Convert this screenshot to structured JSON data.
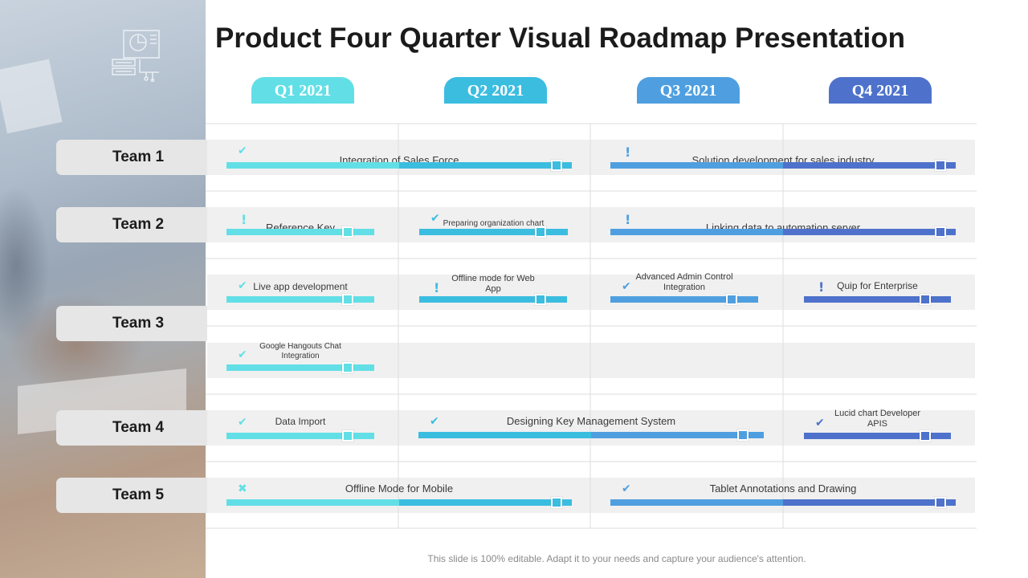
{
  "title": "Product Four Quarter Visual Roadmap Presentation",
  "quarters": [
    {
      "label": "Q1 2021",
      "color": "#62dfe6"
    },
    {
      "label": "Q2 2021",
      "color": "#3bbde0"
    },
    {
      "label": "Q3 2021",
      "color": "#4f9fe0"
    },
    {
      "label": "Q4 2021",
      "color": "#4e72cb"
    }
  ],
  "teams": [
    {
      "name": "Team 1"
    },
    {
      "name": "Team 2"
    },
    {
      "name": "Team 3"
    },
    {
      "name": "Team 4"
    },
    {
      "name": "Team 5"
    }
  ],
  "tasks": [
    {
      "id": "sales-force",
      "label": "Integration  of Sales Force",
      "status": "check",
      "quarter_start": 1,
      "quarter_end": 2
    },
    {
      "id": "solution-dev",
      "label": "Solution development  for sales industry",
      "status": "alert",
      "quarter_start": 3,
      "quarter_end": 4
    },
    {
      "id": "reference-key",
      "label": "Reference  Key",
      "status": "alert",
      "quarter_start": 1,
      "quarter_end": 1
    },
    {
      "id": "org-chart",
      "label": "Preparing organization chart",
      "status": "check",
      "quarter_start": 2,
      "quarter_end": 2
    },
    {
      "id": "linking-data",
      "label": "Linking data to automation server",
      "status": "alert",
      "quarter_start": 3,
      "quarter_end": 4
    },
    {
      "id": "live-app",
      "label": "Live  app development",
      "status": "check",
      "quarter_start": 1,
      "quarter_end": 1
    },
    {
      "id": "offline-web",
      "label": "Offline mode for Web App",
      "status": "alert",
      "quarter_start": 2,
      "quarter_end": 2
    },
    {
      "id": "admin-control",
      "label": "Advanced Admin Control Integration",
      "status": "check",
      "quarter_start": 3,
      "quarter_end": 3
    },
    {
      "id": "quip",
      "label": "Quip for Enterprise",
      "status": "alert",
      "quarter_start": 4,
      "quarter_end": 4
    },
    {
      "id": "hangouts",
      "label": "Google Hangouts Chat Integration",
      "status": "check",
      "quarter_start": 1,
      "quarter_end": 1
    },
    {
      "id": "data-import",
      "label": "Data  Import",
      "status": "check",
      "quarter_start": 1,
      "quarter_end": 1
    },
    {
      "id": "key-mgmt",
      "label": "Designing  Key  Management  System",
      "status": "check",
      "quarter_start": 2,
      "quarter_end": 3
    },
    {
      "id": "lucid",
      "label": "Lucid chart Developer APIS",
      "status": "check",
      "quarter_start": 4,
      "quarter_end": 4
    },
    {
      "id": "offline-mobile",
      "label": "Offline Mode for Mobile",
      "status": "cross",
      "quarter_start": 1,
      "quarter_end": 2
    },
    {
      "id": "tablet",
      "label": "Tablet  Annotations  and  Drawing",
      "status": "check",
      "quarter_start": 3,
      "quarter_end": 4
    }
  ],
  "icons": {
    "check": "check-icon",
    "alert": "alert-icon",
    "cross": "cross-icon",
    "logo": "presentation-chart-icon"
  },
  "footer": "This slide is 100% editable. Adapt it to your needs and capture your audience's attention."
}
